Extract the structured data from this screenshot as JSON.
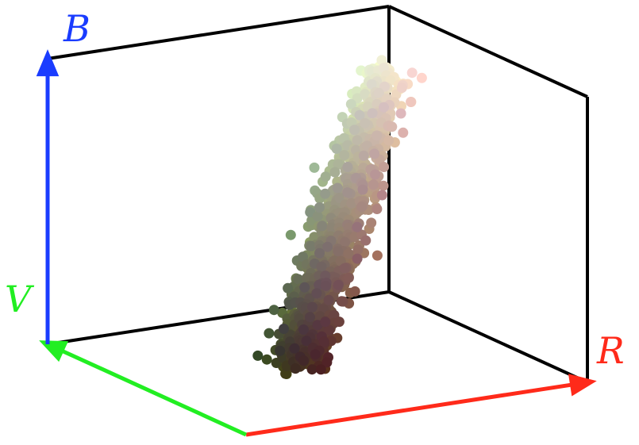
{
  "chart_data": {
    "type": "scatter",
    "projection": "3d",
    "axes": [
      {
        "id": "R",
        "label": "R",
        "color": "#ff2a1a",
        "range": [
          0,
          1
        ]
      },
      {
        "id": "V",
        "label": "V",
        "color": "#22ee22",
        "range": [
          0,
          1
        ]
      },
      {
        "id": "B",
        "label": "B",
        "color": "#1a3cff",
        "range": [
          0,
          1
        ]
      }
    ],
    "box_color": "#000000",
    "point_count": 1200,
    "point_color_mode": "rgb-from-coordinates",
    "cluster": {
      "description_of_shape": "elongated cluster along the grey diagonal",
      "low_end": {
        "R": 0.28,
        "V": 0.22,
        "B": 0.15
      },
      "high_end": {
        "R": 0.95,
        "V": 0.93,
        "B": 0.8
      },
      "spread": 0.06
    }
  }
}
